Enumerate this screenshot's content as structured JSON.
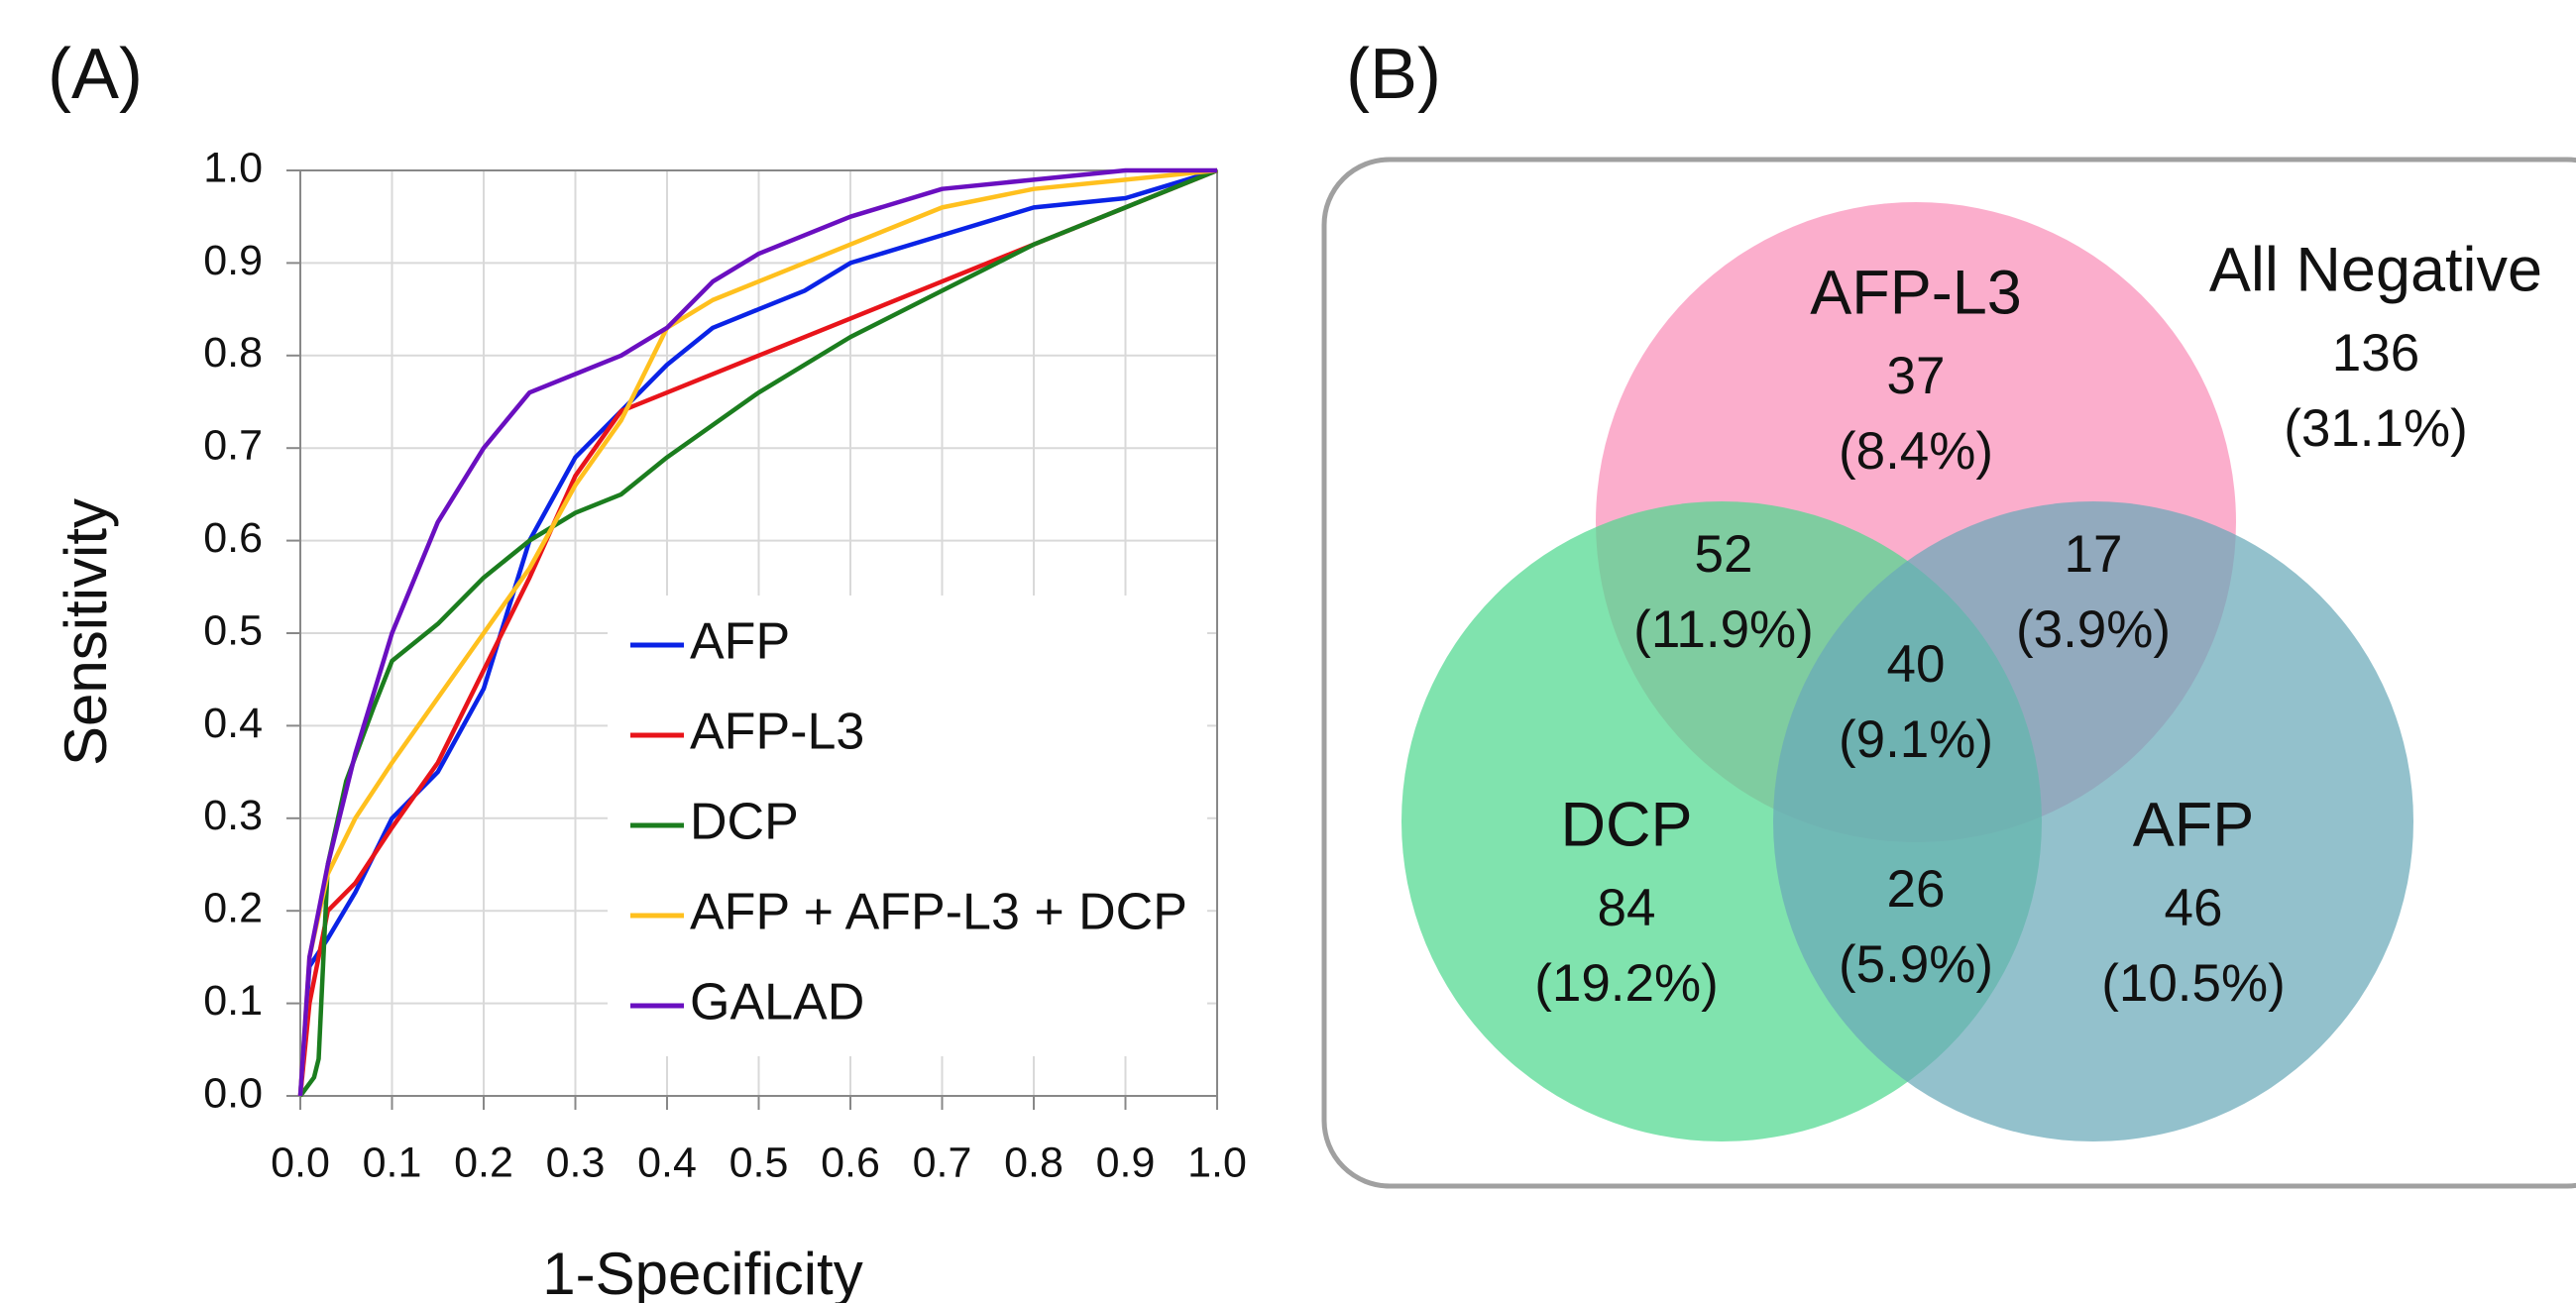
{
  "chart_data": [
    {
      "type": "line",
      "panel_label": "(A)",
      "xlabel": "1-Specificity",
      "ylabel": "Sensitivity",
      "xlim": [
        0,
        1
      ],
      "ylim": [
        0,
        1
      ],
      "xticks": [
        {
          "value": 0,
          "label": "0.0"
        },
        0.1,
        0.2,
        0.3,
        0.4,
        0.5,
        0.6,
        0.7,
        0.8,
        0.9,
        {
          "value": 1,
          "label": "1.0"
        }
      ],
      "yticks": [
        {
          "value": 0,
          "label": "0.0"
        },
        0.1,
        0.2,
        0.3,
        0.4,
        0.5,
        0.6,
        0.7,
        0.8,
        0.9,
        {
          "value": 1,
          "label": "1.0"
        }
      ],
      "grid": true,
      "legend": "lower right",
      "series": [
        {
          "name": "AFP",
          "color": "#0a23e6",
          "x": [
            0,
            0.01,
            0.03,
            0.06,
            0.1,
            0.15,
            0.2,
            0.25,
            0.3,
            0.35,
            0.4,
            0.45,
            0.5,
            0.55,
            0.6,
            0.7,
            0.8,
            0.9,
            1.0
          ],
          "values": [
            0,
            0.14,
            0.17,
            0.22,
            0.3,
            0.35,
            0.44,
            0.6,
            0.69,
            0.74,
            0.79,
            0.83,
            0.85,
            0.87,
            0.9,
            0.93,
            0.96,
            0.97,
            1.0
          ]
        },
        {
          "name": "AFP-L3",
          "color": "#e8141a",
          "x": [
            0,
            0.01,
            0.03,
            0.06,
            0.1,
            0.15,
            0.2,
            0.25,
            0.3,
            0.35,
            0.5,
            0.7,
            0.9,
            1.0
          ],
          "values": [
            0,
            0.1,
            0.2,
            0.23,
            0.29,
            0.36,
            0.46,
            0.56,
            0.67,
            0.74,
            0.8,
            0.88,
            0.96,
            1.0
          ]
        },
        {
          "name": "DCP",
          "color": "#1b7d1e",
          "x": [
            0,
            0.015,
            0.02,
            0.03,
            0.05,
            0.08,
            0.1,
            0.15,
            0.2,
            0.25,
            0.3,
            0.35,
            0.4,
            0.5,
            0.6,
            0.7,
            0.8,
            0.9,
            1.0
          ],
          "values": [
            0,
            0.02,
            0.04,
            0.25,
            0.34,
            0.42,
            0.47,
            0.51,
            0.56,
            0.6,
            0.63,
            0.65,
            0.69,
            0.76,
            0.82,
            0.87,
            0.92,
            0.96,
            1.0
          ]
        },
        {
          "name": "AFP + AFP-L3 + DCP",
          "color": "#ffc01e",
          "x": [
            0,
            0.01,
            0.03,
            0.06,
            0.1,
            0.15,
            0.2,
            0.25,
            0.3,
            0.35,
            0.4,
            0.45,
            0.5,
            0.6,
            0.7,
            0.8,
            0.9,
            1.0
          ],
          "values": [
            0,
            0.15,
            0.24,
            0.3,
            0.36,
            0.43,
            0.5,
            0.57,
            0.66,
            0.73,
            0.83,
            0.86,
            0.88,
            0.92,
            0.96,
            0.98,
            0.99,
            1.0
          ]
        },
        {
          "name": "GALAD",
          "color": "#6a0fc0",
          "x": [
            0,
            0.01,
            0.03,
            0.06,
            0.1,
            0.15,
            0.2,
            0.25,
            0.3,
            0.35,
            0.4,
            0.45,
            0.5,
            0.6,
            0.7,
            0.8,
            0.9,
            1.0
          ],
          "values": [
            0,
            0.15,
            0.25,
            0.37,
            0.5,
            0.62,
            0.7,
            0.76,
            0.78,
            0.8,
            0.83,
            0.88,
            0.91,
            0.95,
            0.98,
            0.99,
            1.0,
            1.0
          ]
        }
      ]
    },
    {
      "type": "venn",
      "panel_label": "(B)",
      "sets": [
        {
          "name": "AFP-L3",
          "color": "#f98fb8"
        },
        {
          "name": "DCP",
          "color": "#4fd88f"
        },
        {
          "name": "AFP",
          "color": "#6aa9b9"
        }
      ],
      "outside": {
        "name": "All Negative",
        "value": 136,
        "percent": 31.1,
        "percent_label": "(31.1%)"
      },
      "regions": [
        {
          "value": 37,
          "percent": 8.4,
          "percent_label": "(8.4%)"
        },
        {
          "value": 84,
          "percent": 19.2,
          "percent_label": "(19.2%)"
        },
        {
          "value": 46,
          "percent": 10.5,
          "percent_label": "(10.5%)"
        },
        {
          "value": 52,
          "percent": 11.9,
          "percent_label": "(11.9%)"
        },
        {
          "value": 17,
          "percent": 3.9,
          "percent_label": "(3.9%)"
        },
        {
          "value": 26,
          "percent": 5.9,
          "percent_label": "(5.9%)"
        },
        {
          "value": 40,
          "percent": 9.1,
          "percent_label": "(9.1%)"
        }
      ]
    }
  ]
}
